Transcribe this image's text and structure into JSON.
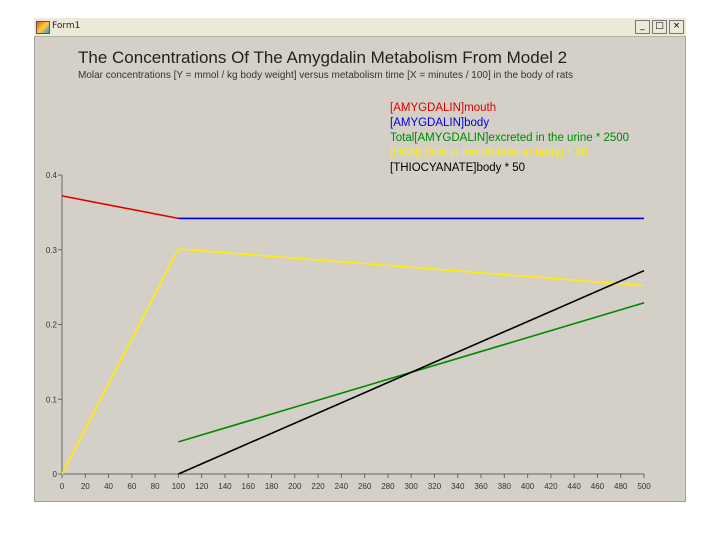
{
  "window": {
    "title": "Form1",
    "buttons": [
      "_",
      "□",
      "×"
    ]
  },
  "chart_data": {
    "type": "line",
    "title": "The Concentrations Of The Amygdalin Metabolism From Model 2",
    "subtitle": "Molar concentrations [Y = mmol / kg body weight] versus metabolism time [X = minutes / 100] in the body of rats",
    "xlim": [
      0,
      500
    ],
    "ylim": [
      0,
      0.4
    ],
    "x_ticks": [
      0,
      20,
      40,
      60,
      80,
      100,
      120,
      140,
      160,
      180,
      200,
      220,
      240,
      260,
      280,
      300,
      320,
      340,
      360,
      380,
      400,
      420,
      440,
      460,
      480,
      500
    ],
    "y_ticks": [
      0,
      0.1,
      0.2,
      0.3,
      0.4
    ],
    "y_tick_labels": [
      "0",
      "0.1",
      "0.2",
      "0.3",
      "0.4"
    ],
    "grid": false,
    "legend_position": "top-right",
    "series": [
      {
        "name": "[AMYGDALIN]mouth",
        "color": "#e00000",
        "x": [
          0,
          100
        ],
        "y": [
          0.372,
          0.342
        ]
      },
      {
        "name": "[AMYGDALIN]body",
        "color": "#0000dd",
        "x": [
          100,
          500
        ],
        "y": [
          0.342,
          0.342
        ]
      },
      {
        "name": "Total[AMYGDALIN]excreted in the urine * 2500",
        "color": "#008800",
        "x": [
          100,
          500
        ],
        "y": [
          0.043,
          0.229
        ]
      },
      {
        "name": "[HCN] (first in mouth later in body) * 10",
        "color": "#ffee00",
        "x": [
          0,
          100,
          500
        ],
        "y": [
          0,
          0.301,
          0.252
        ]
      },
      {
        "name": "[THIOCYANATE]body * 50",
        "color": "#000000",
        "x": [
          100,
          500
        ],
        "y": [
          0,
          0.272
        ]
      }
    ]
  }
}
